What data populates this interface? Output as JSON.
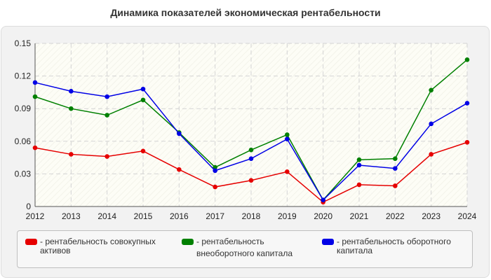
{
  "chart_data": {
    "type": "line",
    "title": "Динамика показателей экономическая рентабельности",
    "xlabel": "",
    "ylabel": "",
    "x": [
      "2012",
      "2013",
      "2014",
      "2015",
      "2016",
      "2017",
      "2018",
      "2019",
      "2020",
      "2021",
      "2022",
      "2023",
      "2024"
    ],
    "ylim": [
      0,
      0.15
    ],
    "yticks": [
      "0",
      "0.03",
      "0.06",
      "0.09",
      "0.12",
      "0.15"
    ],
    "ytick_values": [
      0,
      0.03,
      0.06,
      0.09,
      0.12,
      0.15
    ],
    "grid": true,
    "legend_position": "bottom",
    "series": [
      {
        "name": "- рентабельность совокупных активов",
        "legend_lines": [
          "- рентабельность совокупных",
          "активов"
        ],
        "color": "#e60000",
        "values": [
          0.054,
          0.048,
          0.046,
          0.051,
          0.034,
          0.018,
          0.024,
          0.032,
          0.004,
          0.02,
          0.019,
          0.048,
          0.059
        ]
      },
      {
        "name": "- рентабельность внеоборотного капитала",
        "legend_lines": [
          "- рентабельность",
          "внеоборотного капитала"
        ],
        "color": "#008000",
        "values": [
          0.101,
          0.09,
          0.084,
          0.098,
          0.068,
          0.036,
          0.052,
          0.066,
          0.006,
          0.043,
          0.044,
          0.107,
          0.135
        ]
      },
      {
        "name": "- рентабельность оборотного капитала",
        "legend_lines": [
          "- рентабельность оборотного",
          "капитала"
        ],
        "color": "#0000e6",
        "values": [
          0.114,
          0.106,
          0.101,
          0.108,
          0.067,
          0.033,
          0.044,
          0.062,
          0.006,
          0.038,
          0.035,
          0.076,
          0.095
        ]
      }
    ]
  }
}
